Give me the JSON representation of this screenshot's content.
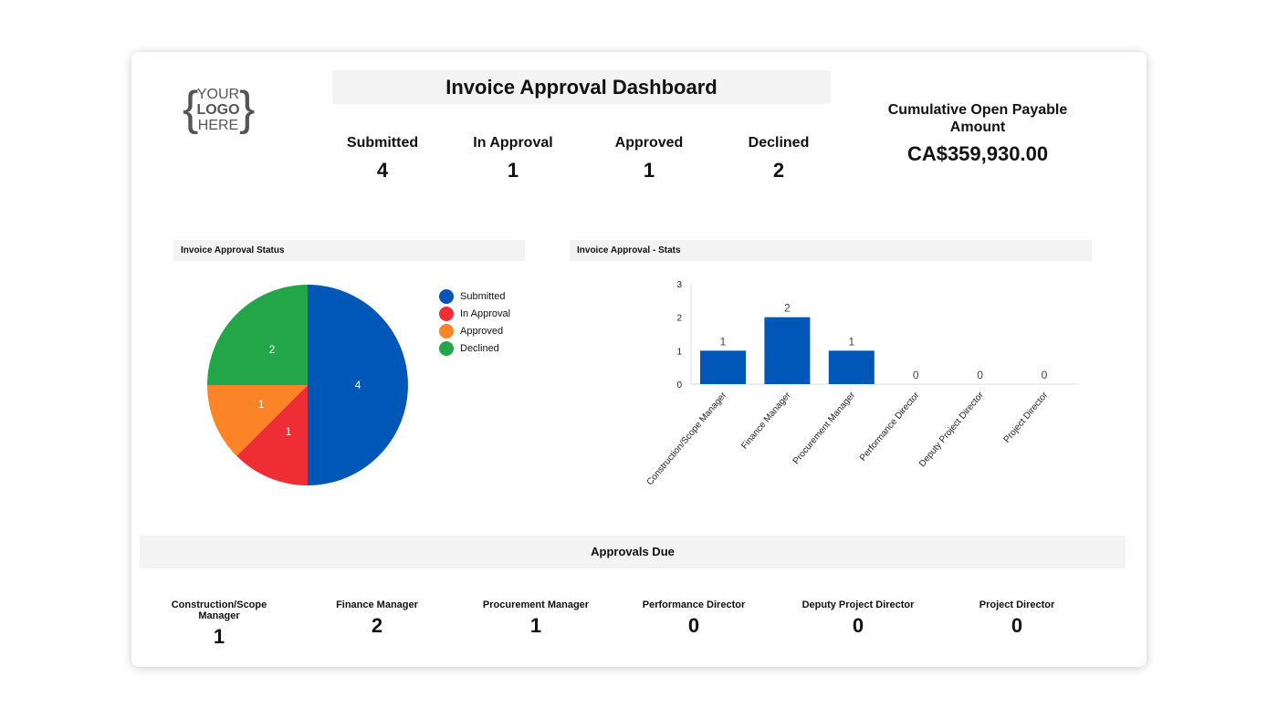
{
  "logo": {
    "line1": "YOUR",
    "line2": "LOGO",
    "line3": "HERE"
  },
  "header": {
    "title": "Invoice Approval Dashboard"
  },
  "kpis": [
    {
      "label": "Submitted",
      "value": "4"
    },
    {
      "label": "In Approval",
      "value": "1"
    },
    {
      "label": "Approved",
      "value": "1"
    },
    {
      "label": "Declined",
      "value": "2"
    }
  ],
  "cumulative": {
    "label": "Cumulative Open Payable Amount",
    "value": "CA$359,930.00"
  },
  "colors": {
    "submitted": "#0057b8",
    "in_approval": "#ef2d35",
    "approved": "#fb8427",
    "declined": "#22a648",
    "bar": "#0057b8"
  },
  "chart_data": [
    {
      "type": "pie",
      "title": "Invoice Approval Status",
      "legend": "right",
      "slices": [
        {
          "label": "Submitted",
          "value": 4
        },
        {
          "label": "In Approval",
          "value": 1
        },
        {
          "label": "Approved",
          "value": 1
        },
        {
          "label": "Declined",
          "value": 2
        }
      ]
    },
    {
      "type": "bar",
      "title": "Invoice Approval - Stats",
      "ylim": [
        0,
        3
      ],
      "yticks": [
        "0",
        "1",
        "2",
        "3"
      ],
      "categories": [
        "Construction/Scope Manager",
        "Finance Manager",
        "Procurement Manager",
        "Performance Director",
        "Deputy Project Director",
        "Project Director"
      ],
      "values": [
        1,
        2,
        1,
        0,
        0,
        0
      ]
    }
  ],
  "approvals_due": {
    "title": "Approvals Due",
    "items": [
      {
        "label": "Construction/Scope Manager",
        "value": "1"
      },
      {
        "label": "Finance Manager",
        "value": "2"
      },
      {
        "label": "Procurement Manager",
        "value": "1"
      },
      {
        "label": "Performance Director",
        "value": "0"
      },
      {
        "label": "Deputy Project Director",
        "value": "0"
      },
      {
        "label": "Project Director",
        "value": "0"
      }
    ]
  }
}
